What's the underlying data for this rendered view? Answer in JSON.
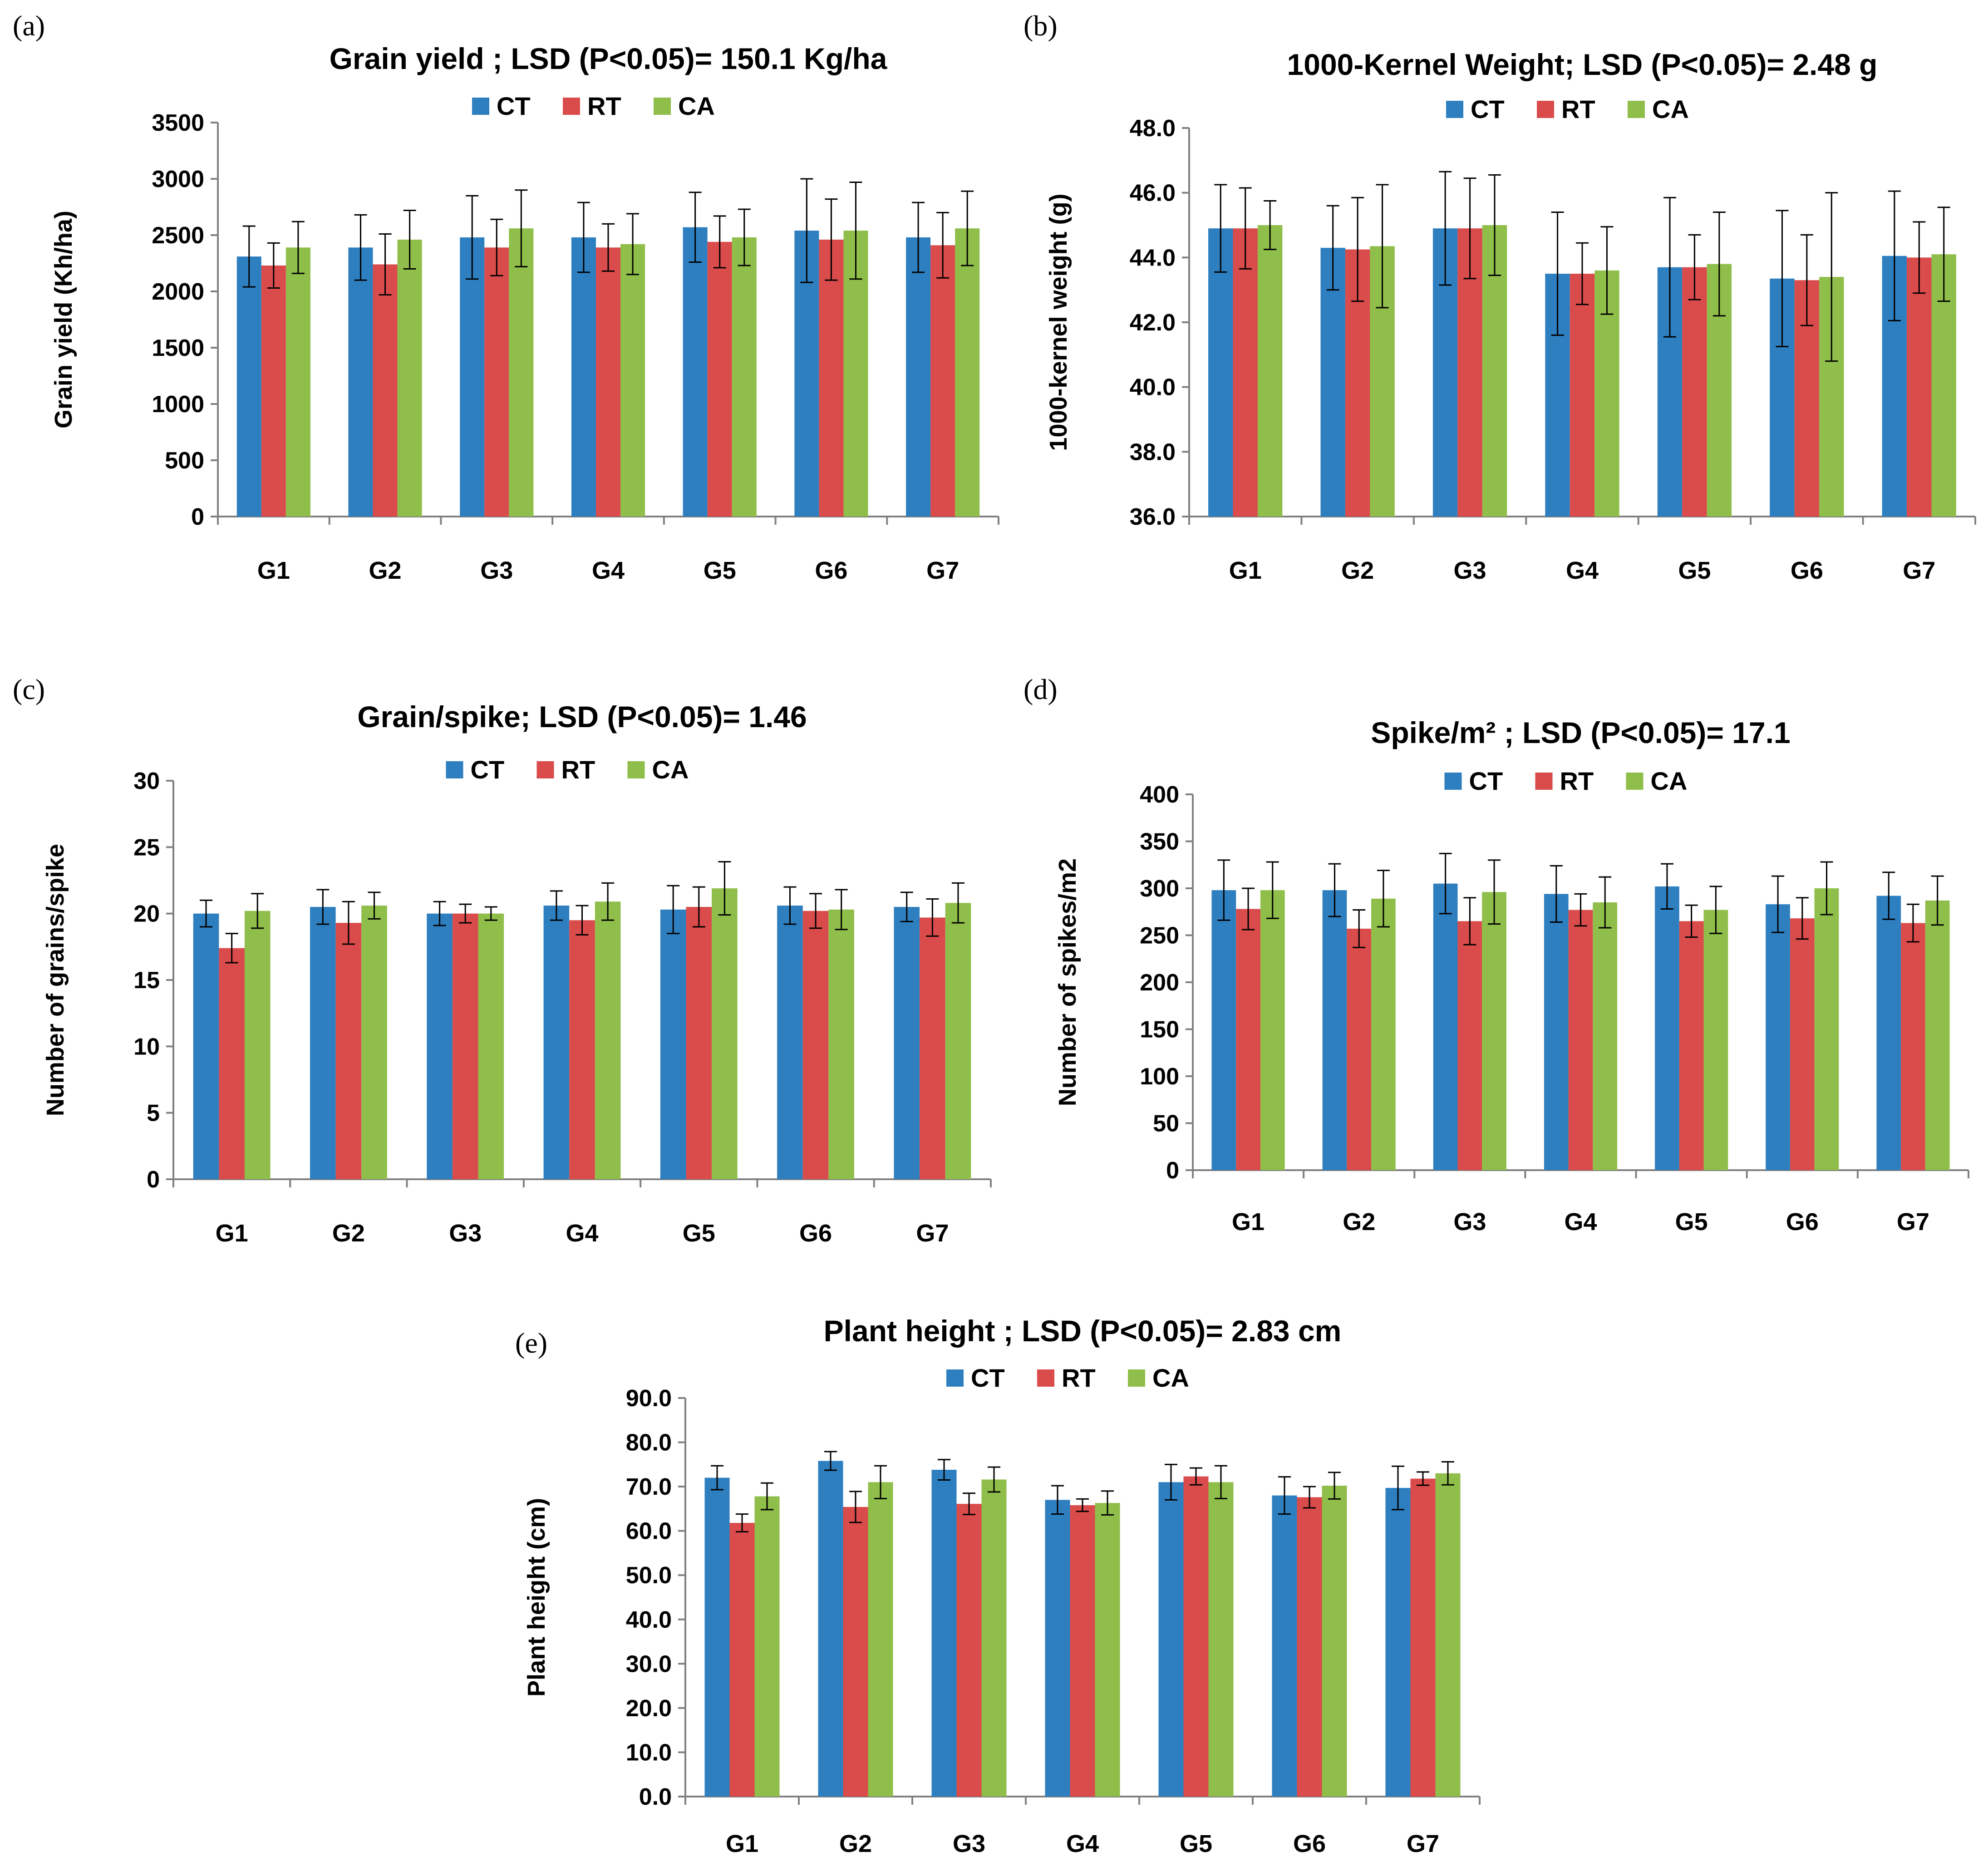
{
  "figure": {
    "panel_labels": [
      "(a)",
      "(b)",
      "(c)",
      "(d)",
      "(e)"
    ]
  },
  "colors": {
    "CT": "#2E7FC0",
    "RT": "#DA4B4B",
    "CA": "#8FBE4A",
    "axis": "#808080",
    "error_bar": "#000000"
  },
  "chart_data": [
    {
      "type": "bar",
      "panel": "(a)",
      "title": "Grain yield ;  LSD (P<0.05)= 150.1 Kg/ha",
      "ylabel": "Grain yield (Kh/ha)",
      "xlabel": "",
      "categories": [
        "G1",
        "G2",
        "G3",
        "G4",
        "G5",
        "G6",
        "G7"
      ],
      "ylim": [
        0,
        3500
      ],
      "yticks": [
        0,
        500,
        1000,
        1500,
        2000,
        2500,
        3000,
        3500
      ],
      "ytick_labels": [
        "0",
        "500",
        "1000",
        "1500",
        "2000",
        "2500",
        "3000",
        "3500"
      ],
      "legend_labels": [
        "CT",
        "RT",
        "CA"
      ],
      "legend_position": "top-center",
      "grid": false,
      "series": [
        {
          "name": "CT",
          "values": [
            2310,
            2390,
            2480,
            2480,
            2570,
            2540,
            2480
          ],
          "errors": [
            270,
            290,
            370,
            310,
            310,
            460,
            310
          ]
        },
        {
          "name": "RT",
          "values": [
            2230,
            2240,
            2390,
            2390,
            2440,
            2460,
            2410
          ],
          "errors": [
            200,
            270,
            250,
            210,
            230,
            360,
            290
          ]
        },
        {
          "name": "CA",
          "values": [
            2390,
            2460,
            2560,
            2420,
            2480,
            2540,
            2560
          ],
          "errors": [
            230,
            260,
            340,
            270,
            250,
            430,
            330
          ]
        }
      ]
    },
    {
      "type": "bar",
      "panel": "(b)",
      "title": "1000-Kernel Weight;   LSD (P<0.05)= 2.48 g",
      "ylabel": "1000-kernel weight (g)",
      "xlabel": "",
      "categories": [
        "G1",
        "G2",
        "G3",
        "G4",
        "G5",
        "G6",
        "G7"
      ],
      "ylim": [
        36,
        48
      ],
      "yticks": [
        36,
        38,
        40,
        42,
        44,
        46,
        48
      ],
      "ytick_labels": [
        "36.0",
        "38.0",
        "40.0",
        "42.0",
        "44.0",
        "46.0",
        "48.0"
      ],
      "legend_labels": [
        "CT",
        "RT",
        "CA"
      ],
      "legend_position": "top-center",
      "grid": false,
      "series": [
        {
          "name": "CT",
          "values": [
            44.9,
            44.3,
            44.9,
            43.5,
            43.7,
            43.35,
            44.05
          ],
          "errors": [
            1.35,
            1.3,
            1.75,
            1.9,
            2.15,
            2.1,
            2.0
          ]
        },
        {
          "name": "RT",
          "values": [
            44.9,
            44.25,
            44.9,
            43.5,
            43.7,
            43.3,
            44.0
          ],
          "errors": [
            1.25,
            1.6,
            1.55,
            0.95,
            1.0,
            1.4,
            1.1
          ]
        },
        {
          "name": "CA",
          "values": [
            45.0,
            44.35,
            45.0,
            43.6,
            43.8,
            43.4,
            44.1
          ],
          "errors": [
            0.75,
            1.9,
            1.55,
            1.35,
            1.6,
            2.6,
            1.45
          ]
        }
      ]
    },
    {
      "type": "bar",
      "panel": "(c)",
      "title": "Grain/spike;    LSD (P<0.05)= 1.46",
      "ylabel": "Number of grains/spike",
      "xlabel": "",
      "categories": [
        "G1",
        "G2",
        "G3",
        "G4",
        "G5",
        "G6",
        "G7"
      ],
      "ylim": [
        0,
        30
      ],
      "yticks": [
        0,
        5,
        10,
        15,
        20,
        25,
        30
      ],
      "ytick_labels": [
        "0",
        "5",
        "10",
        "15",
        "20",
        "25",
        "30"
      ],
      "legend_labels": [
        "CT",
        "RT",
        "CA"
      ],
      "legend_position": "top-center",
      "grid": false,
      "series": [
        {
          "name": "CT",
          "values": [
            20.0,
            20.5,
            20.0,
            20.6,
            20.3,
            20.6,
            20.5
          ],
          "errors": [
            1.0,
            1.3,
            0.9,
            1.1,
            1.8,
            1.4,
            1.1
          ]
        },
        {
          "name": "RT",
          "values": [
            17.4,
            19.3,
            20.0,
            19.5,
            20.5,
            20.2,
            19.7
          ],
          "errors": [
            1.1,
            1.6,
            0.7,
            1.1,
            1.5,
            1.3,
            1.4
          ]
        },
        {
          "name": "CA",
          "values": [
            20.2,
            20.6,
            20.0,
            20.9,
            21.9,
            20.3,
            20.8
          ],
          "errors": [
            1.3,
            1.0,
            0.5,
            1.4,
            2.0,
            1.5,
            1.5
          ]
        }
      ]
    },
    {
      "type": "bar",
      "panel": "(d)",
      "title": "Spike/m² ; LSD (P<0.05)= 17.1",
      "ylabel": "Number of spikes/m2",
      "xlabel": "",
      "categories": [
        "G1",
        "G2",
        "G3",
        "G4",
        "G5",
        "G6",
        "G7"
      ],
      "ylim": [
        0,
        400
      ],
      "yticks": [
        0,
        50,
        100,
        150,
        200,
        250,
        300,
        350,
        400
      ],
      "ytick_labels": [
        "0",
        "50",
        "100",
        "150",
        "200",
        "250",
        "300",
        "350",
        "400"
      ],
      "legend_labels": [
        "CT",
        "RT",
        "CA"
      ],
      "legend_position": "top-center",
      "grid": false,
      "series": [
        {
          "name": "CT",
          "values": [
            298,
            298,
            305,
            294,
            302,
            283,
            292
          ],
          "errors": [
            32,
            28,
            32,
            30,
            24,
            30,
            25
          ]
        },
        {
          "name": "RT",
          "values": [
            278,
            257,
            265,
            277,
            265,
            268,
            263
          ],
          "errors": [
            22,
            20,
            25,
            17,
            17,
            22,
            20
          ]
        },
        {
          "name": "CA",
          "values": [
            298,
            289,
            296,
            285,
            277,
            300,
            287
          ],
          "errors": [
            30,
            30,
            34,
            27,
            25,
            28,
            26
          ]
        }
      ]
    },
    {
      "type": "bar",
      "panel": "(e)",
      "title": "Plant height ;     LSD (P<0.05)= 2.83 cm",
      "ylabel": "Plant height (cm)",
      "xlabel": "",
      "categories": [
        "G1",
        "G2",
        "G3",
        "G4",
        "G5",
        "G6",
        "G7"
      ],
      "ylim": [
        0,
        90
      ],
      "yticks": [
        0,
        10,
        20,
        30,
        40,
        50,
        60,
        70,
        80,
        90
      ],
      "ytick_labels": [
        "0.0",
        "10.0",
        "20.0",
        "30.0",
        "40.0",
        "50.0",
        "60.0",
        "70.0",
        "80.0",
        "90.0"
      ],
      "legend_labels": [
        "CT",
        "RT",
        "CA"
      ],
      "legend_position": "top-center",
      "grid": false,
      "series": [
        {
          "name": "CT",
          "values": [
            72.0,
            75.8,
            73.8,
            67.0,
            71.0,
            68.0,
            69.7
          ],
          "errors": [
            2.7,
            2.1,
            2.3,
            3.2,
            4.0,
            4.2,
            4.9
          ]
        },
        {
          "name": "RT",
          "values": [
            61.8,
            65.4,
            66.1,
            65.8,
            72.3,
            67.6,
            71.8
          ],
          "errors": [
            2.0,
            3.5,
            2.4,
            1.4,
            1.9,
            2.4,
            1.5
          ]
        },
        {
          "name": "CA",
          "values": [
            67.8,
            71.0,
            71.6,
            66.3,
            71.0,
            70.2,
            73.0
          ],
          "errors": [
            3.0,
            3.7,
            2.8,
            2.7,
            3.7,
            3.0,
            2.6
          ]
        }
      ]
    }
  ]
}
